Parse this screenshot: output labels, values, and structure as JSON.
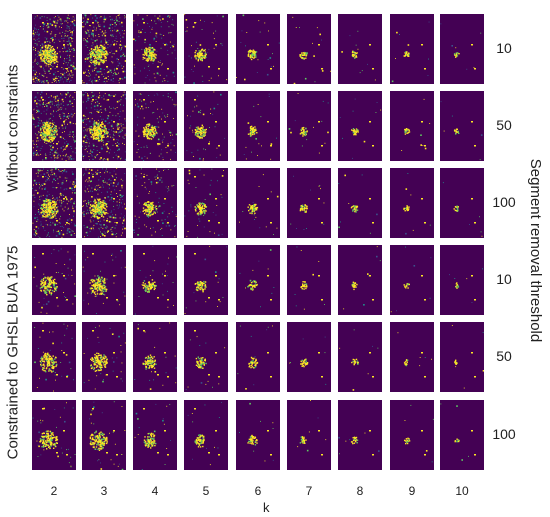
{
  "columns": [
    "2",
    "3",
    "4",
    "5",
    "6",
    "7",
    "8",
    "9",
    "10"
  ],
  "rows": [
    "10",
    "50",
    "100",
    "10",
    "50",
    "100"
  ],
  "x_axis_label": "k",
  "right_title": "Segment removal threshold",
  "group_top": "Without constraints",
  "group_bottom": "Constrained to GHSL BUA 1975",
  "colors": {
    "background": "#440154",
    "high": "#fde725",
    "mid_low": "#3b528b",
    "mid": "#21918c",
    "mid_high": "#5ec962"
  }
}
